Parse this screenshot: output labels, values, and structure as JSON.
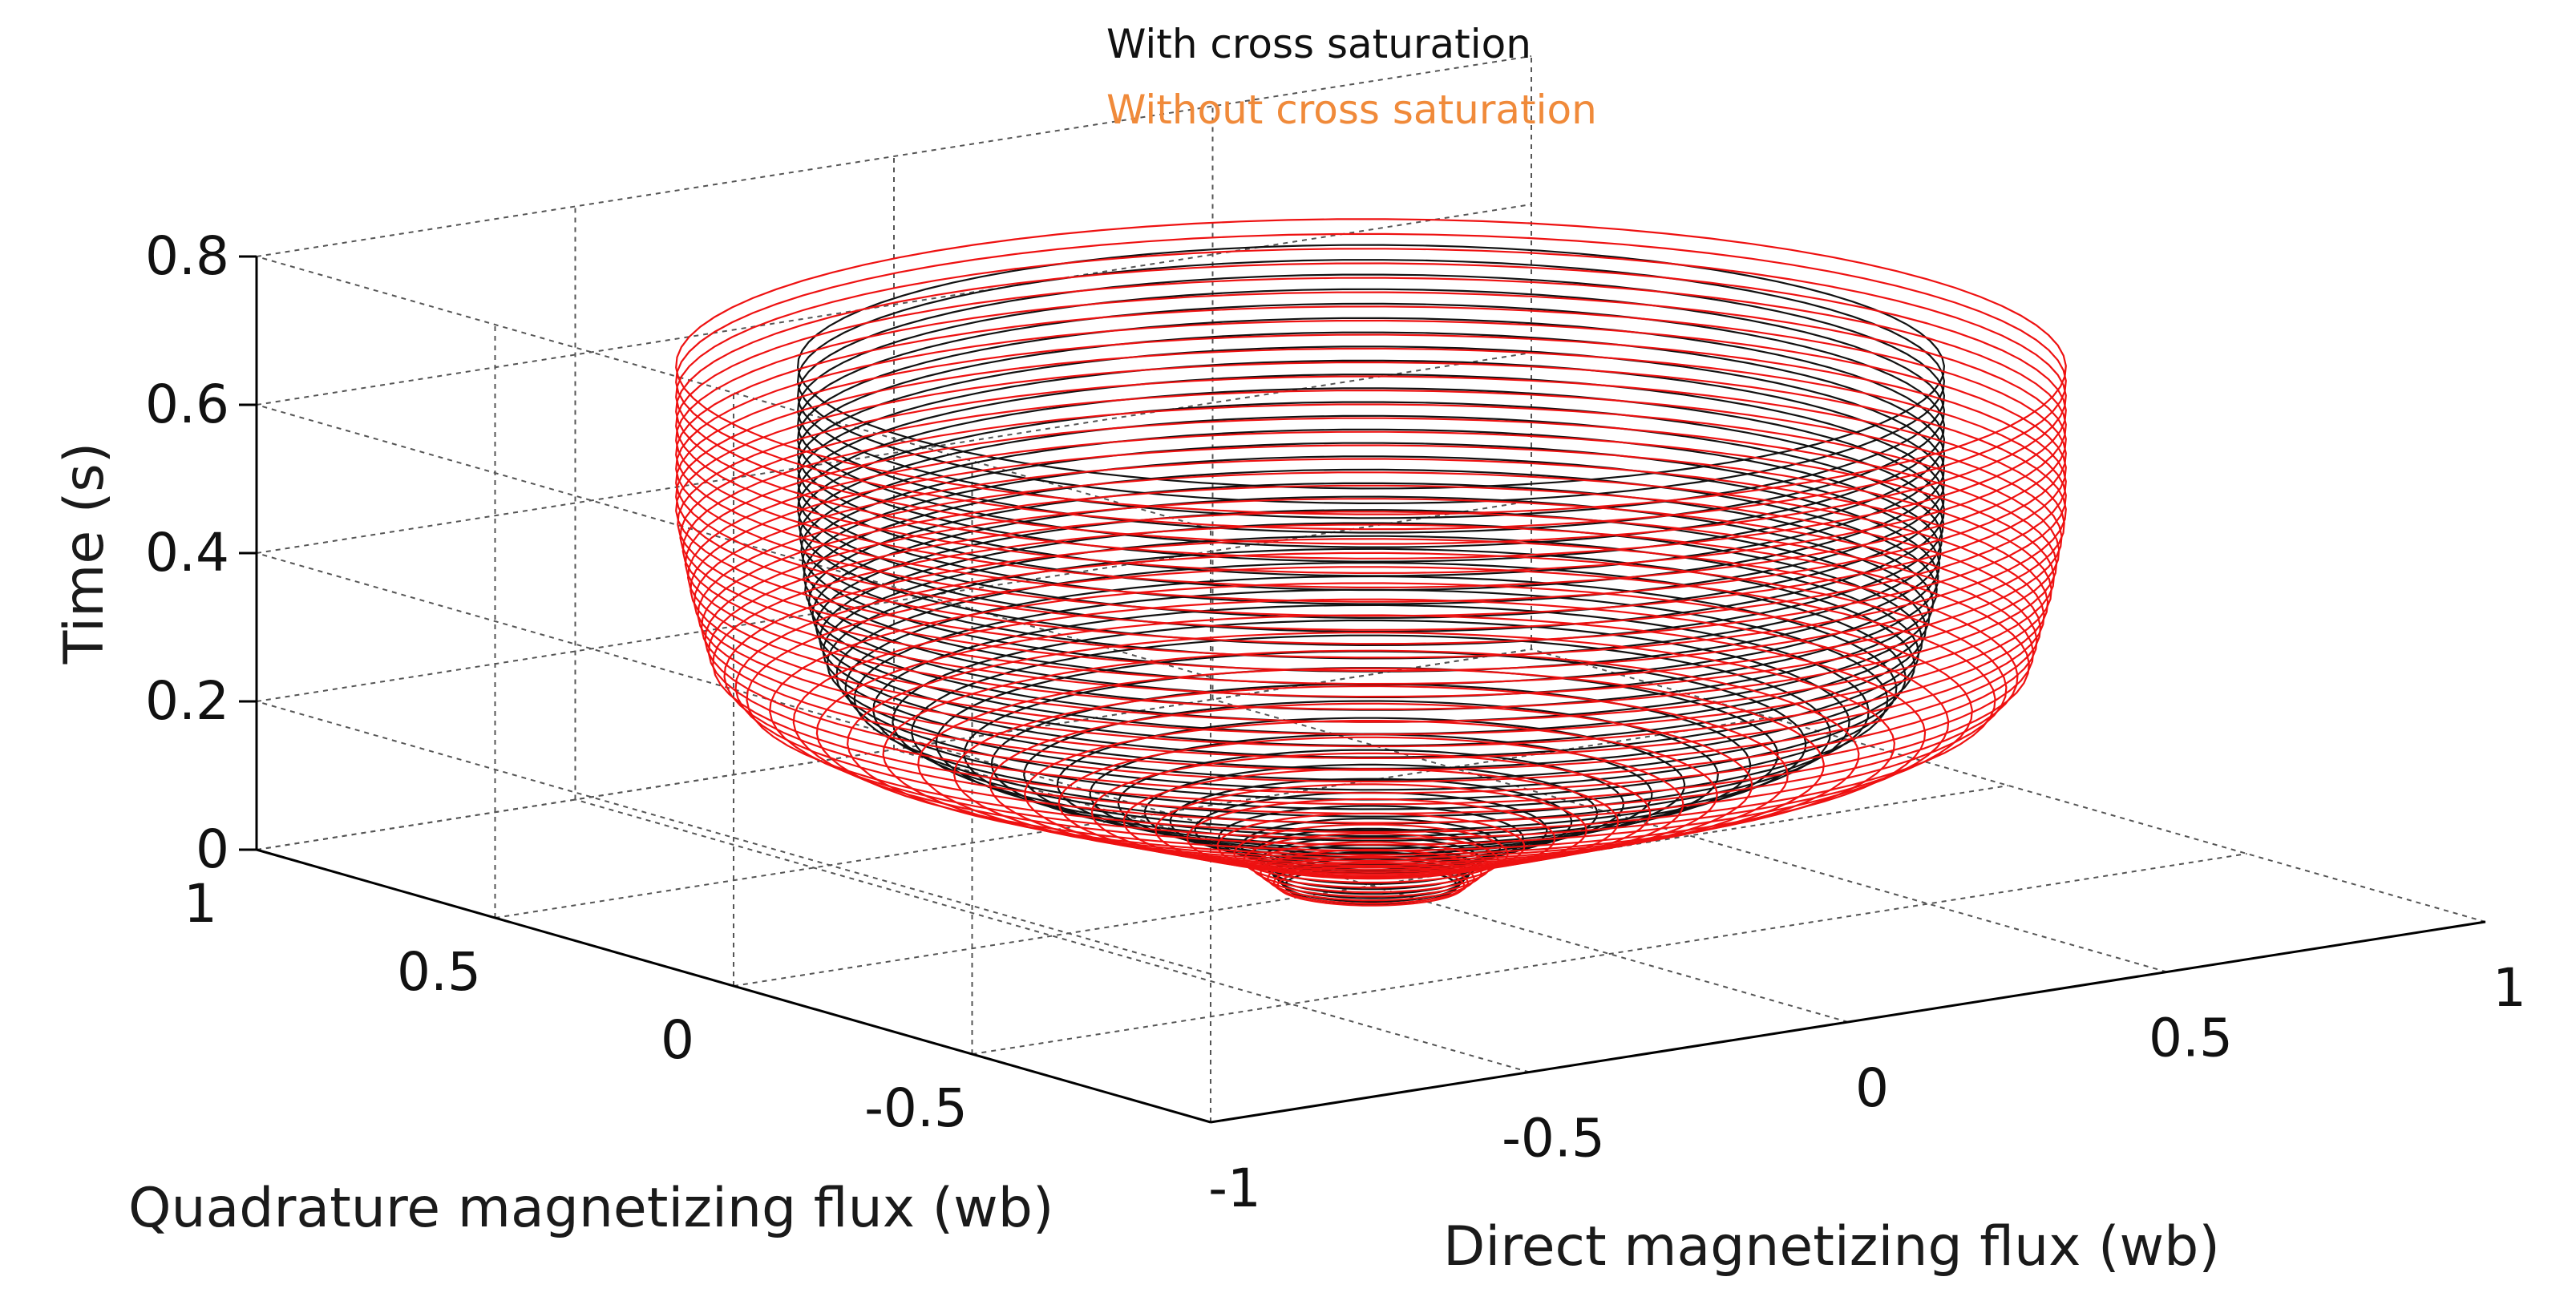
{
  "chart_data": {
    "type": "line3d",
    "legend": {
      "placement": "top-center",
      "entries": [
        {
          "label": "With cross saturation",
          "color": "#111111"
        },
        {
          "label": "Without cross saturation",
          "color": "#f08a3a"
        }
      ]
    },
    "axes": {
      "x": {
        "label": "Direct magnetizing flux (wb)",
        "range": [
          -1,
          1
        ],
        "ticks": [
          "-1",
          "-0.5",
          "0",
          "0.5",
          "1"
        ]
      },
      "y": {
        "label": "Quadrature magnetizing flux (wb)",
        "range": [
          -1,
          1
        ],
        "ticks": [
          "-0.5",
          "0",
          "0.5",
          "1"
        ]
      },
      "z": {
        "label": "Time (s)",
        "range": [
          0,
          0.8
        ],
        "ticks": [
          "0",
          "0.2",
          "0.4",
          "0.6",
          "0.8"
        ]
      }
    },
    "grid": true,
    "series": [
      {
        "color": "#111111",
        "loops": 48,
        "profile": {
          "time": [
            0,
            0.05,
            0.08,
            0.12,
            0.16,
            0.2,
            0.25,
            0.3,
            0.4,
            0.5,
            0.6,
            0.7
          ],
          "radius": [
            0.12,
            0.17,
            0.26,
            0.38,
            0.52,
            0.63,
            0.72,
            0.76,
            0.79,
            0.8,
            0.8,
            0.8
          ]
        }
      },
      {
        "color": "#ee1111",
        "loops": 48,
        "profile": {
          "time": [
            0,
            0.05,
            0.08,
            0.12,
            0.16,
            0.2,
            0.25,
            0.3,
            0.4,
            0.5,
            0.6,
            0.7
          ],
          "radius": [
            0.13,
            0.2,
            0.32,
            0.47,
            0.62,
            0.76,
            0.87,
            0.92,
            0.95,
            0.97,
            0.97,
            0.97
          ]
        }
      }
    ]
  }
}
